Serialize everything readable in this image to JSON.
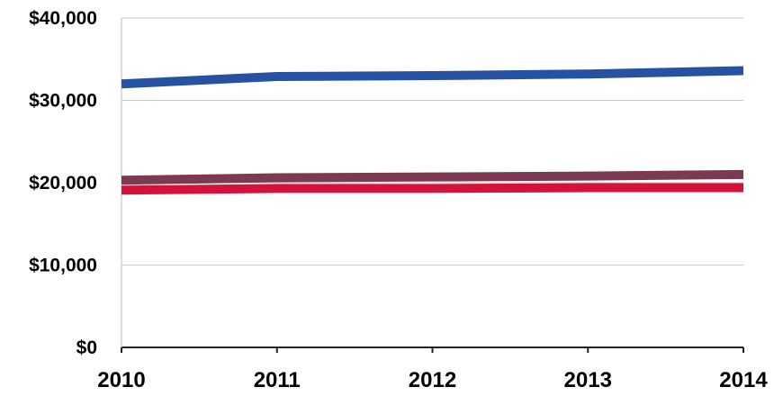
{
  "chart_data": {
    "type": "line",
    "title": "",
    "xlabel": "",
    "ylabel": "",
    "x": [
      "2010",
      "2011",
      "2012",
      "2013",
      "2014"
    ],
    "ylim": [
      0,
      40000
    ],
    "y_ticks": [
      0,
      10000,
      20000,
      30000,
      40000
    ],
    "y_tick_labels": [
      "$0",
      "$10,000",
      "$20,000",
      "$30,000",
      "$40,000"
    ],
    "grid": true,
    "legend": "none",
    "series": [
      {
        "color": "#2752a3",
        "values": [
          32000,
          32900,
          33000,
          33200,
          33600
        ]
      },
      {
        "color": "#7b3a50",
        "values": [
          20300,
          20600,
          20700,
          20800,
          21000
        ]
      },
      {
        "color": "#d4123a",
        "values": [
          19100,
          19300,
          19300,
          19400,
          19400
        ]
      }
    ]
  }
}
